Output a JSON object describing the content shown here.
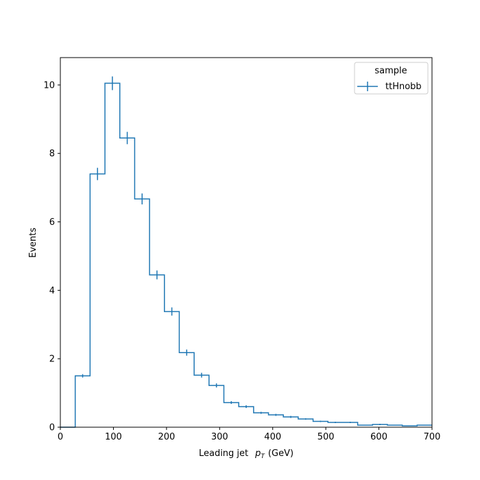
{
  "chart_data": {
    "type": "histogram",
    "title": "",
    "xlabel": "Leading jet",
    "xlabel_math": "p",
    "xlabel_math_sub": "T",
    "xlabel_unit": "(GeV)",
    "ylabel": "Events",
    "xlim": [
      0,
      700
    ],
    "ylim": [
      0,
      10.8
    ],
    "xticks": [
      0,
      100,
      200,
      300,
      400,
      500,
      600,
      700
    ],
    "yticks": [
      0,
      2,
      4,
      6,
      8,
      10
    ],
    "grid": false,
    "legend": {
      "title": "sample",
      "placement": "top-right",
      "entries": [
        "ttHnobb"
      ]
    },
    "series": [
      {
        "name": "ttHnobb",
        "color": "#1f77b4",
        "bin_edges": [
          0,
          28,
          56,
          84,
          112,
          140,
          168,
          196,
          224,
          252,
          280,
          308,
          336,
          364,
          392,
          420,
          448,
          476,
          504,
          532,
          560,
          588,
          616,
          644,
          672,
          700
        ],
        "values": [
          0.0,
          1.5,
          7.4,
          10.05,
          8.45,
          6.67,
          4.45,
          3.38,
          2.18,
          1.52,
          1.22,
          0.72,
          0.6,
          0.42,
          0.36,
          0.3,
          0.24,
          0.17,
          0.14,
          0.14,
          0.06,
          0.08,
          0.06,
          0.04,
          0.06
        ],
        "errors": [
          0.0,
          0.05,
          0.18,
          0.2,
          0.18,
          0.16,
          0.13,
          0.12,
          0.09,
          0.07,
          0.06,
          0.04,
          0.04,
          0.03,
          0.03,
          0.03,
          0.02,
          0.02,
          0.02,
          0.02,
          0.01,
          0.02,
          0.01,
          0.01,
          0.01
        ]
      }
    ]
  }
}
